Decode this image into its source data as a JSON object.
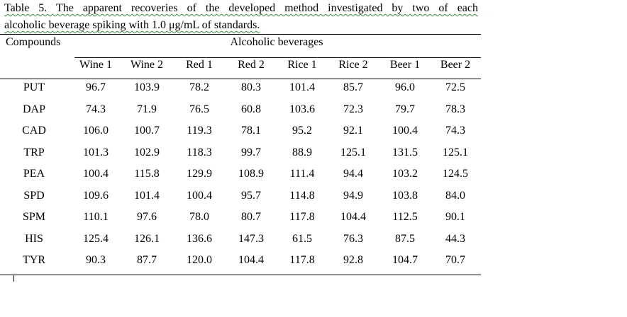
{
  "caption": {
    "lines": [
      "Table  5.  The  apparent  recoveries  of  the  developed  method  investigated  by  two  of  each",
      "alcoholic beverage spiking with 1.0 μg/mL of standards."
    ]
  },
  "table": {
    "stub_header": "Compounds",
    "group_header": "Alcoholic beverages",
    "columns": [
      "Wine 1",
      "Wine 2",
      "Red 1",
      "Red 2",
      "Rice 1",
      "Rice 2",
      "Beer 1",
      "Beer 2"
    ],
    "rows": [
      [
        "PUT",
        "96.7",
        "103.9",
        "78.2",
        "80.3",
        "101.4",
        "85.7",
        "96.0",
        "72.5"
      ],
      [
        "DAP",
        "74.3",
        "71.9",
        "76.5",
        "60.8",
        "103.6",
        "72.3",
        "79.7",
        "78.3"
      ],
      [
        "CAD",
        "106.0",
        "100.7",
        "119.3",
        "78.1",
        "95.2",
        "92.1",
        "100.4",
        "74.3"
      ],
      [
        "TRP",
        "101.3",
        "102.9",
        "118.3",
        "99.7",
        "88.9",
        "125.1",
        "131.5",
        "125.1"
      ],
      [
        "PEA",
        "100.4",
        "115.8",
        "129.9",
        "108.9",
        "111.4",
        "94.4",
        "103.2",
        "124.5"
      ],
      [
        "SPD",
        "109.6",
        "101.4",
        "100.4",
        "95.7",
        "114.8",
        "94.9",
        "103.8",
        "84.0"
      ],
      [
        "SPM",
        "110.1",
        "97.6",
        "78.0",
        "80.7",
        "117.8",
        "104.4",
        "112.5",
        "90.1"
      ],
      [
        "HIS",
        "125.4",
        "126.1",
        "136.6",
        "147.3",
        "61.5",
        "76.3",
        "87.5",
        "44.3"
      ],
      [
        "TYR",
        "90.3",
        "87.7",
        "120.0",
        "104.4",
        "117.8",
        "92.8",
        "104.7",
        "70.7"
      ]
    ]
  }
}
